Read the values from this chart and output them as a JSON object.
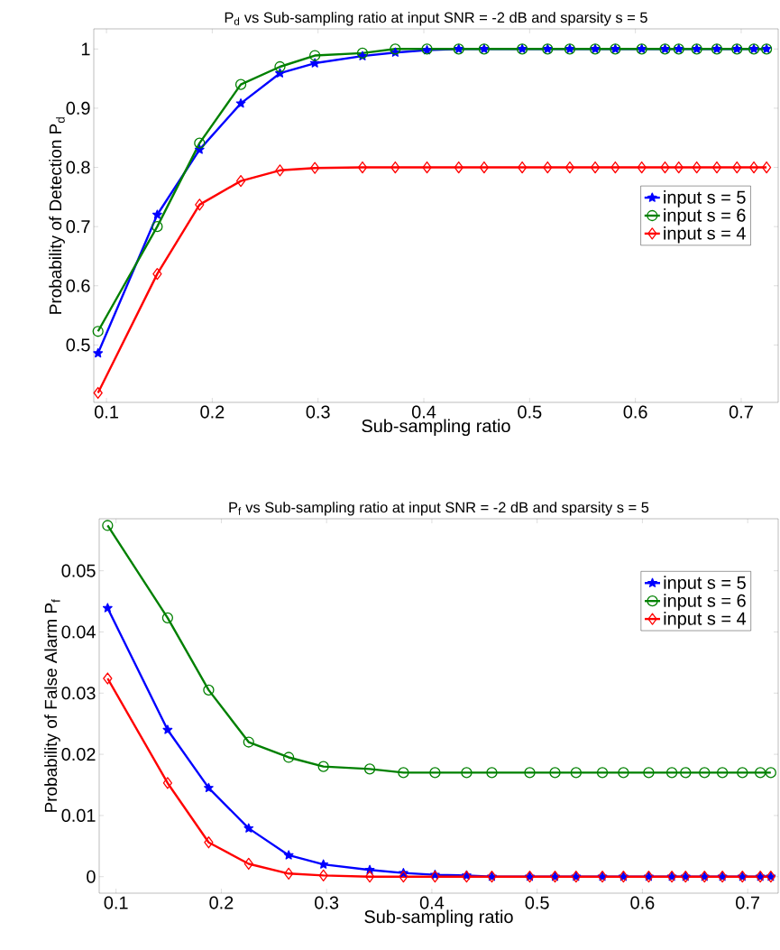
{
  "chart_data": [
    {
      "type": "line",
      "title": "P$_{d}$ vs Sub-sampling ratio at input SNR = -2 dB and sparsity s = 5",
      "xlabel": "Sub-sampling ratio",
      "ylabel": "Probability of Detection P$_{d}$",
      "x": [
        0.092,
        0.148,
        0.188,
        0.227,
        0.264,
        0.297,
        0.342,
        0.373,
        0.403,
        0.433,
        0.457,
        0.493,
        0.517,
        0.538,
        0.562,
        0.581,
        0.606,
        0.628,
        0.641,
        0.658,
        0.677,
        0.696,
        0.712,
        0.724
      ],
      "xlim": [
        0.088,
        0.735
      ],
      "ylim": [
        0.403,
        1.034
      ],
      "xticks": [
        0.1,
        0.2,
        0.3,
        0.4,
        0.5,
        0.6,
        0.7
      ],
      "yticks": [
        0.5,
        0.6,
        0.7,
        0.8,
        0.9,
        1
      ],
      "grid": false,
      "legend": "right",
      "line_style": "solid",
      "series": [
        {
          "name": "input s = 5",
          "color": "#0000ff",
          "marker": "star",
          "values": [
            0.486,
            0.72,
            0.83,
            0.908,
            0.959,
            0.976,
            0.988,
            0.994,
            0.998,
            1,
            1,
            1,
            1,
            1,
            1,
            1,
            1,
            1,
            1,
            1,
            1,
            1,
            1,
            1
          ]
        },
        {
          "name": "input s = 6",
          "color": "#008000",
          "marker": "circle",
          "values": [
            0.523,
            0.7,
            0.841,
            0.94,
            0.97,
            0.989,
            0.993,
            1,
            1,
            1,
            1,
            1,
            1,
            1,
            1,
            1,
            1,
            1,
            1,
            1,
            1,
            1,
            1,
            1
          ]
        },
        {
          "name": "input s = 4",
          "color": "#ff0000",
          "marker": "diamond",
          "values": [
            0.419,
            0.62,
            0.737,
            0.777,
            0.795,
            0.799,
            0.8,
            0.8,
            0.8,
            0.8,
            0.8,
            0.8,
            0.8,
            0.8,
            0.8,
            0.8,
            0.8,
            0.8,
            0.8,
            0.8,
            0.8,
            0.8,
            0.8,
            0.8
          ]
        }
      ]
    },
    {
      "type": "line",
      "title": "P$_{f}$ vs Sub-sampling ratio at input SNR = -2 dB and sparsity s = 5",
      "xlabel": "Sub-sampling ratio",
      "ylabel": "Probability of False Alarm P$_{f}$",
      "x": [
        0.092,
        0.149,
        0.188,
        0.226,
        0.264,
        0.297,
        0.341,
        0.373,
        0.403,
        0.433,
        0.457,
        0.493,
        0.517,
        0.537,
        0.562,
        0.582,
        0.606,
        0.628,
        0.641,
        0.659,
        0.676,
        0.695,
        0.712,
        0.722
      ],
      "xlim": [
        0.084,
        0.729
      ],
      "ylim": [
        -0.0027,
        0.0585
      ],
      "xticks": [
        0.1,
        0.2,
        0.3,
        0.4,
        0.5,
        0.6,
        0.7
      ],
      "yticks": [
        0,
        0.01,
        0.02,
        0.03,
        0.04,
        0.05
      ],
      "grid": false,
      "legend": "top right",
      "line_style": "solid",
      "series": [
        {
          "name": "input s = 5",
          "color": "#0000ff",
          "marker": "star",
          "values": [
            0.0439,
            0.024,
            0.0145,
            0.0079,
            0.0035,
            0.002,
            0.0011,
            0.0006,
            0.0003,
            0.0002,
            0,
            0,
            0,
            0,
            0,
            0,
            0,
            0,
            0,
            0,
            0,
            0,
            0,
            0
          ]
        },
        {
          "name": "input s = 6",
          "color": "#008000",
          "marker": "circle",
          "values": [
            0.0574,
            0.0423,
            0.0305,
            0.022,
            0.0195,
            0.018,
            0.0176,
            0.017,
            0.017,
            0.017,
            0.017,
            0.017,
            0.017,
            0.017,
            0.017,
            0.017,
            0.017,
            0.017,
            0.017,
            0.017,
            0.017,
            0.017,
            0.017,
            0.017
          ]
        },
        {
          "name": "input s = 4",
          "color": "#ff0000",
          "marker": "diamond",
          "values": [
            0.0324,
            0.0153,
            0.0056,
            0.0021,
            0.0005,
            0.0002,
            0,
            0,
            0,
            0,
            0,
            0,
            0,
            0,
            0,
            0,
            0,
            0,
            0,
            0,
            0,
            0,
            0,
            0
          ]
        }
      ]
    }
  ]
}
